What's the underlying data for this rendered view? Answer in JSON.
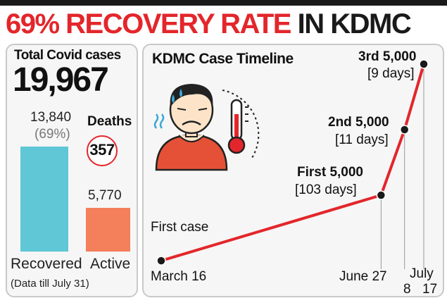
{
  "headline": {
    "part1": "69% RECOVERY RATE",
    "part2": "IN KDMC"
  },
  "summary": {
    "total_label": "Total Covid cases",
    "total_value": "19,967",
    "deaths_label": "Deaths",
    "deaths_value": "357",
    "footnote": "(Data till July 31)"
  },
  "colors": {
    "red": "#e3262b",
    "recovered": "#5fc7d5",
    "active": "#f47f5b",
    "panel": "#f6f6f6"
  },
  "chart_data": [
    {
      "type": "bar",
      "categories": [
        "Recovered",
        "Active"
      ],
      "values": [
        13840,
        5770
      ],
      "value_labels": [
        "13,840",
        "5,770"
      ],
      "annotations": [
        "(69%)"
      ]
    },
    {
      "type": "line",
      "title": "KDMC Case Timeline",
      "x": [
        "March 16",
        "June 27",
        "July 8",
        "July 17"
      ],
      "y": [
        1,
        5000,
        10000,
        15000
      ],
      "point_labels": [
        {
          "name": "First case",
          "detail": ""
        },
        {
          "name": "First 5,000",
          "detail": "[103 days]"
        },
        {
          "name": "2nd 5,000",
          "detail": "[11 days]"
        },
        {
          "name": "3rd 5,000",
          "detail": "[9 days]"
        }
      ],
      "x_tick_labels": [
        "March 16",
        "June 27",
        "July",
        "8",
        "17"
      ],
      "icons": [
        "sick-person-icon",
        "thermometer-icon"
      ]
    }
  ]
}
